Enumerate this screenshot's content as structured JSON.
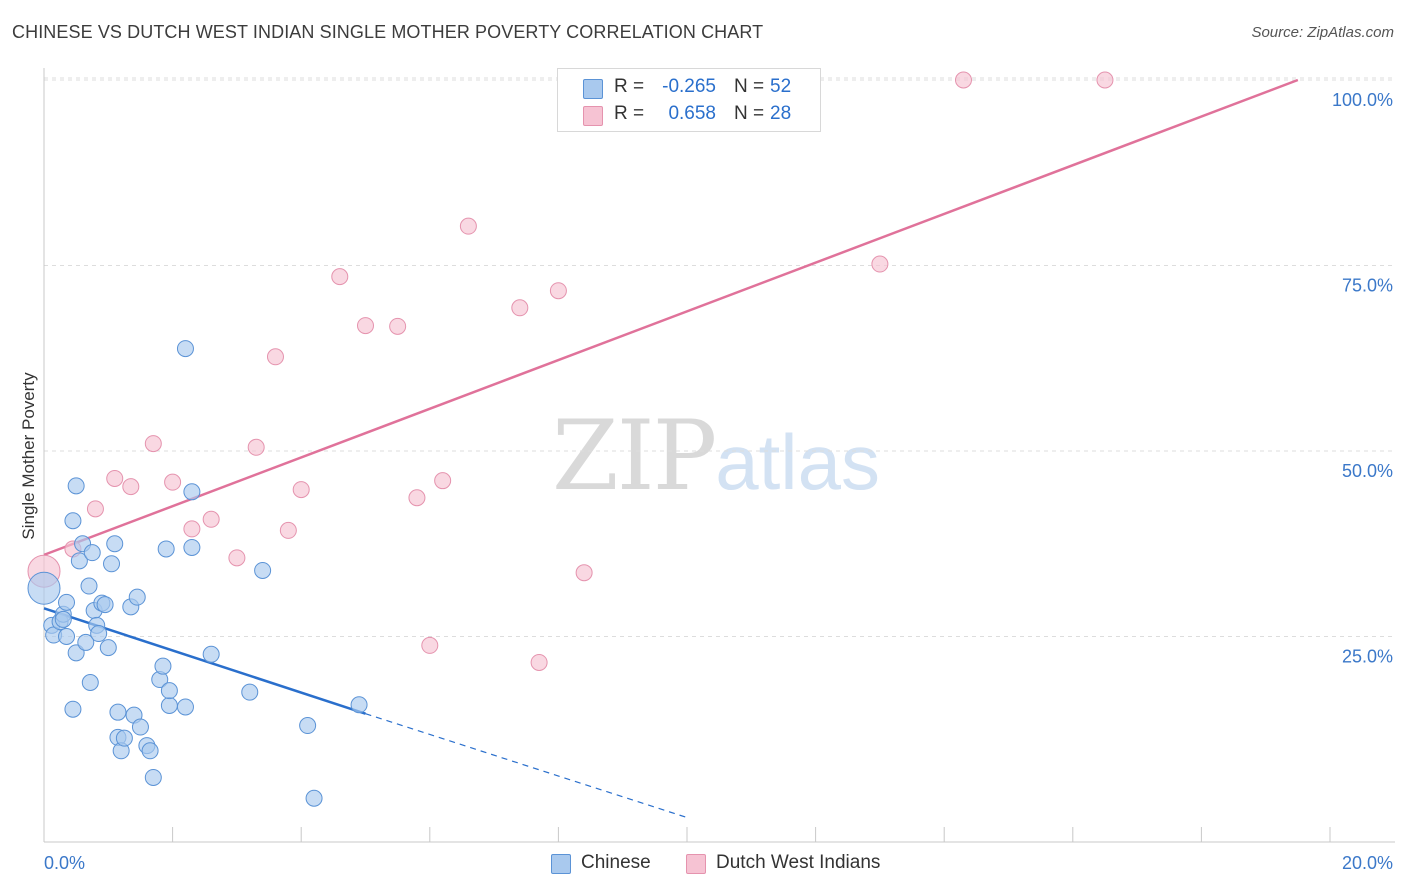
{
  "title": "CHINESE VS DUTCH WEST INDIAN SINGLE MOTHER POVERTY CORRELATION CHART",
  "source": "Source: ZipAtlas.com",
  "watermark": {
    "zip": "ZIP",
    "atlas": "atlas"
  },
  "legend": {
    "rows": [
      {
        "r_label": "R =",
        "r_value": "-0.265",
        "n_label": "N =",
        "n_value": "52"
      },
      {
        "r_label": "R =",
        "r_value": "0.658",
        "n_label": "N =",
        "n_value": "28"
      }
    ]
  },
  "colors": {
    "chinese_fill": "#a9c9ee",
    "chinese_stroke": "#5b93d6",
    "chinese_line": "#2a6fcc",
    "dutch_fill": "#f6c3d3",
    "dutch_stroke": "#e593ae",
    "dutch_line": "#e0729a",
    "grid": "#dddddd",
    "tick_text": "#3b78c9"
  },
  "chart_data": {
    "type": "scatter",
    "title": "CHINESE VS DUTCH WEST INDIAN SINGLE MOTHER POVERTY CORRELATION CHART",
    "xlabel": "",
    "ylabel": "Single Mother Poverty",
    "xlim": [
      0,
      20
    ],
    "ylim": [
      0,
      100
    ],
    "x_tick_labels": [
      "0.0%",
      "20.0%"
    ],
    "y_ticks": [
      25,
      50,
      75,
      100
    ],
    "y_tick_labels": [
      "25.0%",
      "50.0%",
      "75.0%",
      "100.0%"
    ],
    "grid": true,
    "legend_position": "top-center",
    "series": [
      {
        "name": "Chinese",
        "r": -0.265,
        "n": 52,
        "trend": {
          "x0": 0,
          "y0": 28.8,
          "x1": 5.0,
          "y1": 14.6,
          "dashed_to_x": 10.0,
          "dashed_to_y": 0.6
        },
        "points": [
          [
            0.0,
            31.5
          ],
          [
            0.12,
            26.5
          ],
          [
            0.15,
            25.2
          ],
          [
            0.25,
            27.0
          ],
          [
            0.3,
            28.0
          ],
          [
            0.3,
            27.3
          ],
          [
            0.35,
            29.6
          ],
          [
            0.35,
            25.0
          ],
          [
            0.45,
            15.2
          ],
          [
            0.45,
            40.6
          ],
          [
            0.5,
            22.8
          ],
          [
            0.5,
            45.3
          ],
          [
            0.55,
            35.2
          ],
          [
            0.6,
            37.5
          ],
          [
            0.65,
            24.2
          ],
          [
            0.7,
            31.8
          ],
          [
            0.72,
            18.8
          ],
          [
            0.75,
            36.3
          ],
          [
            0.78,
            28.5
          ],
          [
            0.82,
            26.5
          ],
          [
            0.85,
            25.4
          ],
          [
            0.9,
            29.5
          ],
          [
            0.95,
            29.3
          ],
          [
            1.0,
            23.5
          ],
          [
            1.05,
            34.8
          ],
          [
            1.1,
            37.5
          ],
          [
            1.15,
            11.4
          ],
          [
            1.15,
            14.8
          ],
          [
            1.2,
            9.6
          ],
          [
            1.25,
            11.3
          ],
          [
            1.35,
            29.0
          ],
          [
            1.4,
            14.4
          ],
          [
            1.45,
            30.3
          ],
          [
            1.5,
            12.8
          ],
          [
            1.6,
            10.3
          ],
          [
            1.65,
            9.6
          ],
          [
            1.7,
            6.0
          ],
          [
            1.8,
            19.2
          ],
          [
            1.85,
            21.0
          ],
          [
            1.95,
            15.7
          ],
          [
            1.95,
            17.7
          ],
          [
            2.2,
            15.5
          ],
          [
            2.2,
            63.8
          ],
          [
            2.3,
            37.0
          ],
          [
            2.3,
            44.5
          ],
          [
            2.6,
            22.6
          ],
          [
            3.2,
            17.5
          ],
          [
            3.4,
            33.9
          ],
          [
            4.1,
            13.0
          ],
          [
            4.2,
            3.2
          ],
          [
            4.9,
            15.8
          ],
          [
            1.9,
            36.8
          ]
        ]
      },
      {
        "name": "Dutch West Indians",
        "r": 0.658,
        "n": 28,
        "trend": {
          "x0": 0,
          "y0": 36.0,
          "x1": 19.5,
          "y1": 100.0
        },
        "points": [
          [
            0.0,
            33.8
          ],
          [
            0.45,
            36.8
          ],
          [
            0.8,
            42.2
          ],
          [
            1.1,
            46.3
          ],
          [
            1.35,
            45.2
          ],
          [
            1.7,
            51.0
          ],
          [
            2.0,
            45.8
          ],
          [
            2.3,
            39.5
          ],
          [
            2.6,
            40.8
          ],
          [
            3.0,
            35.6
          ],
          [
            3.3,
            50.5
          ],
          [
            3.6,
            62.7
          ],
          [
            3.8,
            39.3
          ],
          [
            4.0,
            44.8
          ],
          [
            4.6,
            73.5
          ],
          [
            5.0,
            66.9
          ],
          [
            5.5,
            66.8
          ],
          [
            5.8,
            43.7
          ],
          [
            6.0,
            23.8
          ],
          [
            6.2,
            46.0
          ],
          [
            6.6,
            80.3
          ],
          [
            7.4,
            69.3
          ],
          [
            7.7,
            21.5
          ],
          [
            8.0,
            71.6
          ],
          [
            8.4,
            33.6
          ],
          [
            13.0,
            75.2
          ],
          [
            14.3,
            100.0
          ],
          [
            16.5,
            100.0
          ]
        ]
      }
    ]
  }
}
